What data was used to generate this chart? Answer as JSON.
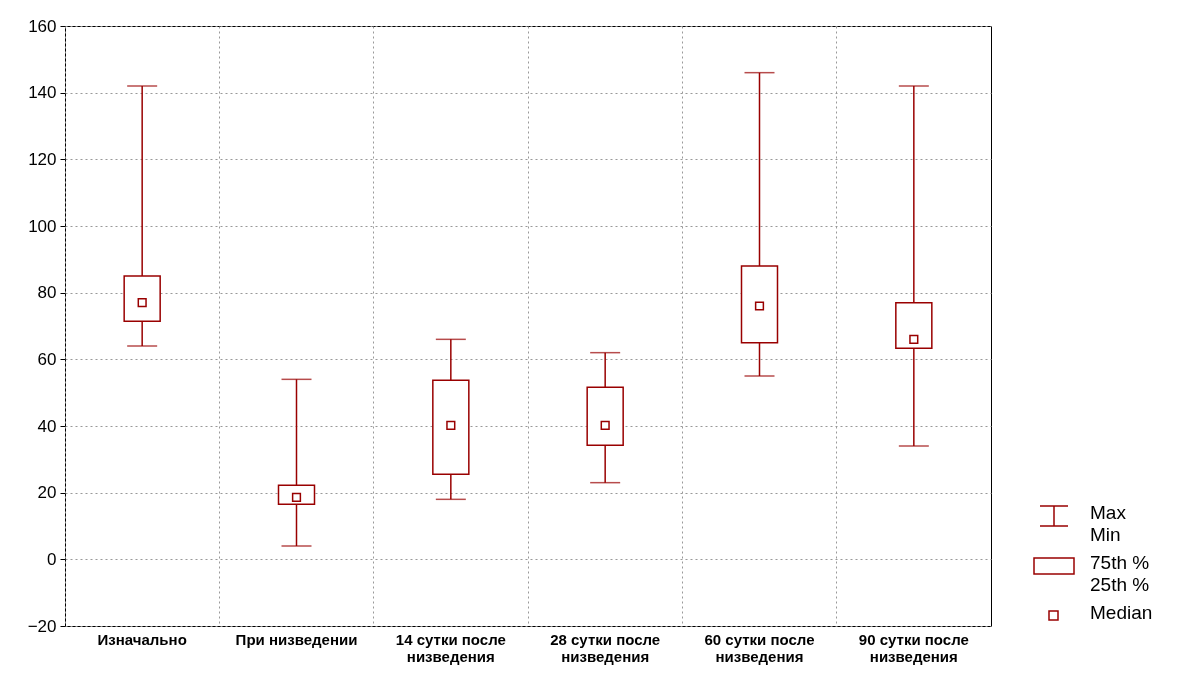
{
  "chart_data": {
    "type": "box",
    "categories": [
      "Изначально",
      "При низведении",
      "14 сутки после низведения",
      "28  сутки после низведения",
      "60 сутки после низведения",
      "90 сутки после низведения"
    ],
    "boxes": [
      {
        "low": 64,
        "q1": 71.4,
        "median": 77,
        "q3": 85,
        "high": 142
      },
      {
        "low": 4,
        "q1": 16.5,
        "median": 18.6,
        "q3": 22.2,
        "high": 54
      },
      {
        "low": 18,
        "q1": 25.5,
        "median": 40.2,
        "q3": 53.7,
        "high": 66
      },
      {
        "low": 23,
        "q1": 34.2,
        "median": 40.2,
        "q3": 51.6,
        "high": 62
      },
      {
        "low": 55,
        "q1": 65,
        "median": 76,
        "q3": 88,
        "high": 146
      },
      {
        "low": 34,
        "q1": 63.3,
        "median": 66,
        "q3": 77,
        "high": 142
      }
    ],
    "color": "#990000",
    "ylim": [
      -20,
      160
    ],
    "yticks": [
      -20,
      0,
      20,
      40,
      60,
      80,
      100,
      120,
      140,
      160
    ],
    "grid": true,
    "marker": "square",
    "annotations": [
      "Max",
      "Min",
      "75th %",
      "25th %",
      "Median"
    ]
  }
}
